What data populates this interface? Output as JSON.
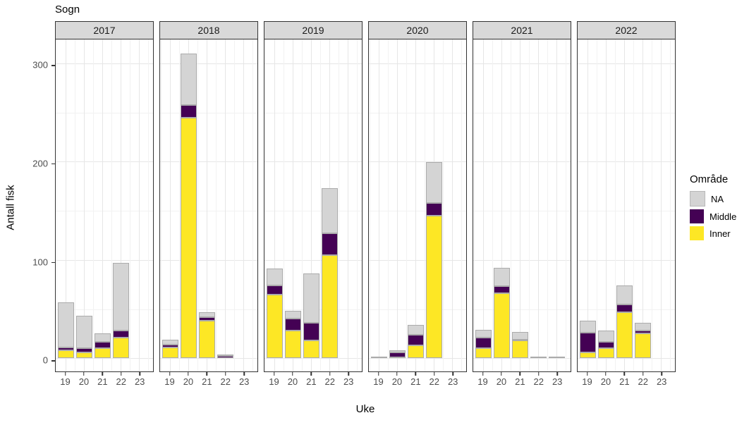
{
  "chart_data": {
    "type": "bar",
    "title": "Sogn",
    "xlabel": "Uke",
    "ylabel": "Antall fisk",
    "legend": {
      "title": "Område",
      "entries": [
        {
          "label": "NA",
          "color": "#D4D4D4"
        },
        {
          "label": "Middle",
          "color": "#440154"
        },
        {
          "label": "Inner",
          "color": "#FDE725"
        }
      ]
    },
    "colors": {
      "Inner": "#FDE725",
      "Middle": "#440154",
      "NA": "#D4D4D4"
    },
    "stack_order_bottom_to_top": [
      "Inner",
      "Middle",
      "NA"
    ],
    "x_ticks": [
      19,
      20,
      21,
      22,
      23
    ],
    "x_minor": [
      18.5,
      19.5,
      20.5,
      21.5,
      22.5,
      23.5
    ],
    "y_ticks": [
      0,
      100,
      200,
      300
    ],
    "y_minor": [
      50,
      150,
      250
    ],
    "ylim": [
      -13.5,
      324.5
    ],
    "x_range": [
      18.45,
      23.75
    ],
    "bar_width": 0.9,
    "grid": true,
    "legend_position": "right",
    "facets": [
      {
        "year": "2017",
        "bars": [
          {
            "week": 19,
            "Inner": 8,
            "Middle": 3,
            "NA": 46
          },
          {
            "week": 20,
            "Inner": 6,
            "Middle": 4,
            "NA": 33
          },
          {
            "week": 21,
            "Inner": 10,
            "Middle": 7,
            "NA": 8
          },
          {
            "week": 22,
            "Inner": 21,
            "Middle": 7,
            "NA": 69
          }
        ]
      },
      {
        "year": "2018",
        "bars": [
          {
            "week": 19,
            "Inner": 11,
            "Middle": 3,
            "NA": 5
          },
          {
            "week": 20,
            "Inner": 245,
            "Middle": 13,
            "NA": 52
          },
          {
            "week": 21,
            "Inner": 38,
            "Middle": 4,
            "NA": 5
          },
          {
            "week": 22,
            "Inner": 0,
            "Middle": 2,
            "NA": 1
          }
        ]
      },
      {
        "year": "2019",
        "bars": [
          {
            "week": 19,
            "Inner": 65,
            "Middle": 9,
            "NA": 17
          },
          {
            "week": 20,
            "Inner": 28,
            "Middle": 12,
            "NA": 8
          },
          {
            "week": 21,
            "Inner": 18,
            "Middle": 18,
            "NA": 50
          },
          {
            "week": 22,
            "Inner": 105,
            "Middle": 22,
            "NA": 46
          }
        ]
      },
      {
        "year": "2020",
        "bars": [
          {
            "week": 19,
            "Inner": 0,
            "Middle": 0,
            "NA": 1
          },
          {
            "week": 20,
            "Inner": 1,
            "Middle": 5,
            "NA": 2
          },
          {
            "week": 21,
            "Inner": 13,
            "Middle": 11,
            "NA": 10
          },
          {
            "week": 22,
            "Inner": 145,
            "Middle": 13,
            "NA": 42
          }
        ]
      },
      {
        "year": "2021",
        "bars": [
          {
            "week": 19,
            "Inner": 10,
            "Middle": 11,
            "NA": 8
          },
          {
            "week": 20,
            "Inner": 66,
            "Middle": 7,
            "NA": 19
          },
          {
            "week": 21,
            "Inner": 18,
            "Middle": 1,
            "NA": 8
          },
          {
            "week": 22,
            "Inner": 0,
            "Middle": 0,
            "NA": 1
          },
          {
            "week": 23,
            "Inner": 0,
            "Middle": 0,
            "NA": 1
          }
        ]
      },
      {
        "year": "2022",
        "bars": [
          {
            "week": 19,
            "Inner": 6,
            "Middle": 20,
            "NA": 12
          },
          {
            "week": 20,
            "Inner": 10,
            "Middle": 7,
            "NA": 11
          },
          {
            "week": 21,
            "Inner": 47,
            "Middle": 8,
            "NA": 19
          },
          {
            "week": 22,
            "Inner": 25,
            "Middle": 3,
            "NA": 8
          }
        ]
      }
    ]
  }
}
